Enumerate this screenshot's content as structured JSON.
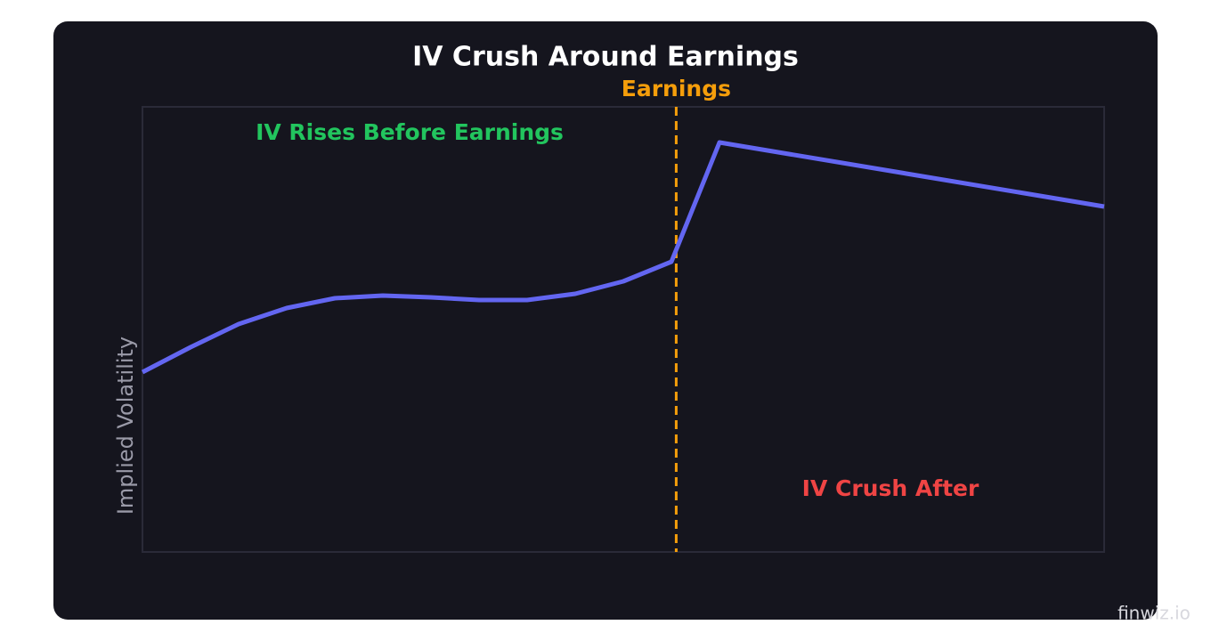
{
  "chart_data": {
    "type": "line",
    "title": "IV Crush Around Earnings",
    "y_label": "Implied Volatility",
    "x": [
      0,
      1,
      2,
      3,
      4,
      5,
      6,
      7,
      8,
      9,
      10,
      11,
      12,
      20
    ],
    "series": [
      {
        "name": "Implied Volatility",
        "color": "#6366f1",
        "values": [
          40.4,
          46,
          51.2,
          54.8,
          57,
          57.6,
          57.2,
          56.6,
          56.6,
          58,
          60.8,
          65.2,
          92,
          77.6
        ]
      }
    ],
    "xlim": [
      0,
      20
    ],
    "ylim": [
      0,
      100
    ],
    "earnings_x": 11.1,
    "annotations": {
      "earnings": "Earnings",
      "rise": "IV Rises Before Earnings",
      "crush": "IV Crush After"
    },
    "watermark": "finwiz.io"
  }
}
